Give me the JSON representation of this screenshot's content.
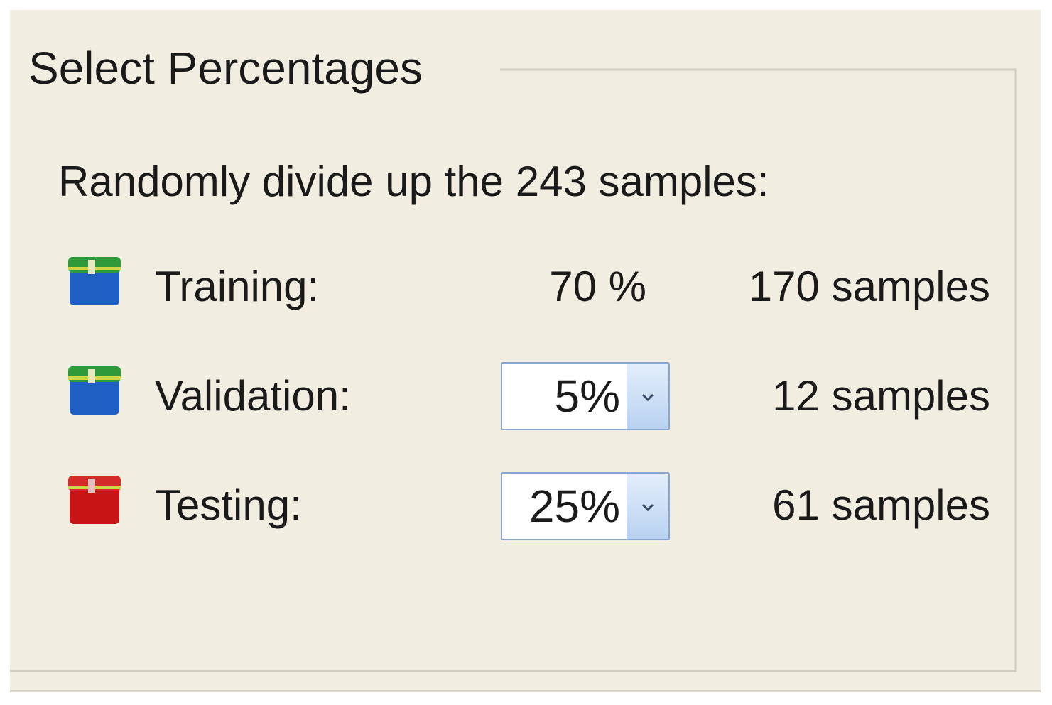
{
  "header": {
    "title": "Select Percentages"
  },
  "description": "Randomly divide up the 243 samples:",
  "rows": [
    {
      "label": "Training:",
      "percent": "70 %",
      "samples": "170 samples"
    },
    {
      "label": "Validation:",
      "percent": "5%",
      "samples": "12 samples"
    },
    {
      "label": "Testing:",
      "percent": "25%",
      "samples": "61 samples"
    }
  ]
}
